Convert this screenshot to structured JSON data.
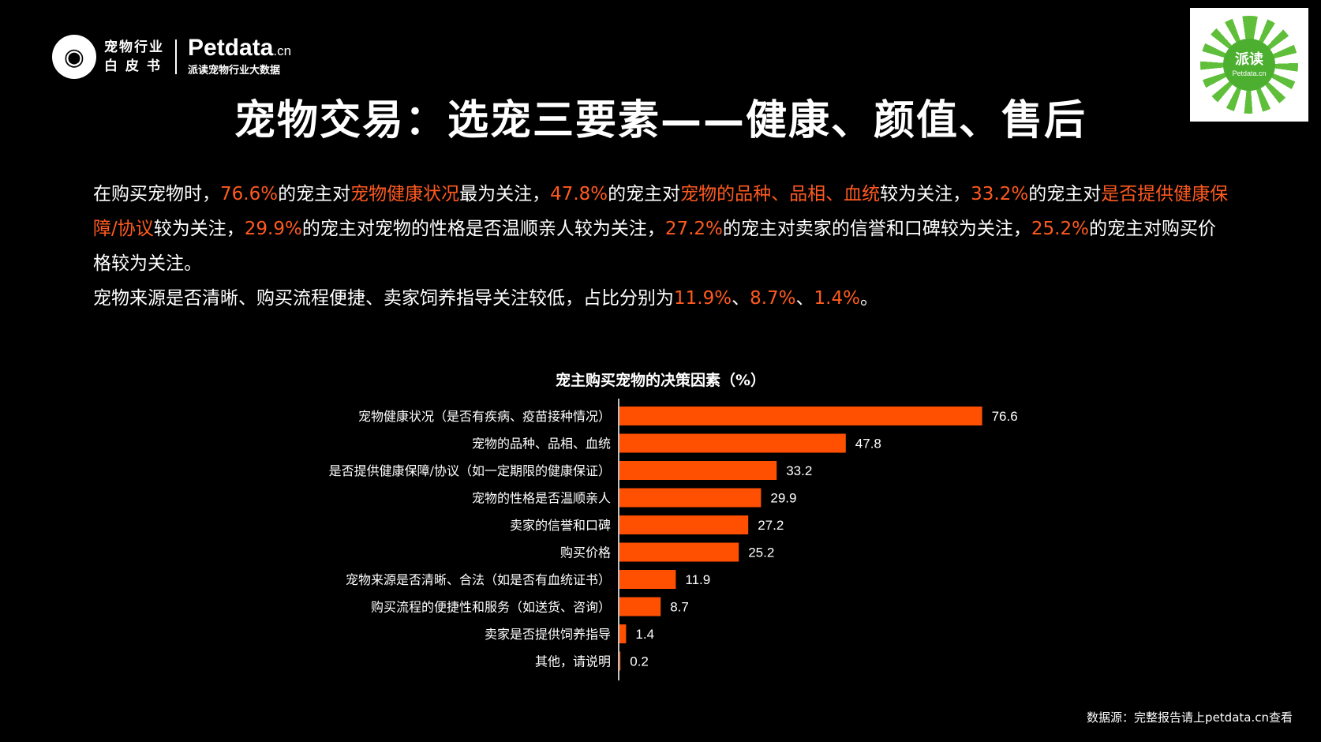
{
  "logo": {
    "icon": "pet-face-icon",
    "line1": "宠物行业",
    "line2": "白 皮 书",
    "brand": "Petdata",
    "brand_suffix": ".cn",
    "brand_sub": "派读宠物行业大数据"
  },
  "qr": {
    "name": "派读",
    "brand": "Petdata.cn"
  },
  "title": "宠物交易：选宠三要素——健康、颜值、售后",
  "paragraph": {
    "p1": [
      {
        "t": "在购买宠物时，",
        "h": false
      },
      {
        "t": "76.6%",
        "h": true
      },
      {
        "t": "的宠主对",
        "h": false
      },
      {
        "t": "宠物健康状况",
        "h": true
      },
      {
        "t": "最为关注，",
        "h": false
      },
      {
        "t": "47.8%",
        "h": true
      },
      {
        "t": "的宠主对",
        "h": false
      },
      {
        "t": "宠物的品种、品相、血统",
        "h": true
      },
      {
        "t": "较为关注，",
        "h": false
      },
      {
        "t": "33.2%",
        "h": true
      },
      {
        "t": "的宠主对",
        "h": false
      },
      {
        "t": "是否提供健康保障/协议",
        "h": true
      },
      {
        "t": "较为关注，",
        "h": false
      },
      {
        "t": "29.9%",
        "h": true
      },
      {
        "t": "的宠主对宠物的性格是否温顺亲人较为关注，",
        "h": false
      },
      {
        "t": "27.2%",
        "h": true
      },
      {
        "t": "的宠主对卖家的信誉和口碑较为关注，",
        "h": false
      },
      {
        "t": "25.2%",
        "h": true
      },
      {
        "t": "的宠主对购买价格较为关注。",
        "h": false
      }
    ],
    "p2": [
      {
        "t": "宠物来源是否清晰、购买流程便捷、卖家饲养指导关注较低，占比分别为",
        "h": false
      },
      {
        "t": "11.9%",
        "h": true
      },
      {
        "t": "、",
        "h": false
      },
      {
        "t": "8.7%",
        "h": true
      },
      {
        "t": "、",
        "h": false
      },
      {
        "t": "1.4%",
        "h": true
      },
      {
        "t": "。",
        "h": false
      }
    ]
  },
  "colors": {
    "accent": "#ff5a1f",
    "bar": "#ff4f00",
    "background": "#000000",
    "text": "#ffffff"
  },
  "chart_data": {
    "type": "bar",
    "orientation": "horizontal",
    "title": "宠主购买宠物的决策因素（%）",
    "categories": [
      "宠物健康状况（是否有疾病、疫苗接种情况）",
      "宠物的品种、品相、血统",
      "是否提供健康保障/协议（如一定期限的健康保证）",
      "宠物的性格是否温顺亲人",
      "卖家的信誉和口碑",
      "购买价格",
      "宠物来源是否清晰、合法（如是否有血统证书）",
      "购买流程的便捷性和服务（如送货、咨询）",
      "卖家是否提供饲养指导",
      "其他，请说明"
    ],
    "values": [
      76.6,
      47.8,
      33.2,
      29.9,
      27.2,
      25.2,
      11.9,
      8.7,
      1.4,
      0.2
    ],
    "value_labels": [
      "76.6",
      "47.8",
      "33.2",
      "29.9",
      "27.2",
      "25.2",
      "11.9",
      "8.7",
      "1.4",
      "0.2"
    ],
    "xlim": [
      0,
      80
    ],
    "grid": false,
    "legend": "none"
  },
  "source": "数据源：完整报告请上petdata.cn查看"
}
